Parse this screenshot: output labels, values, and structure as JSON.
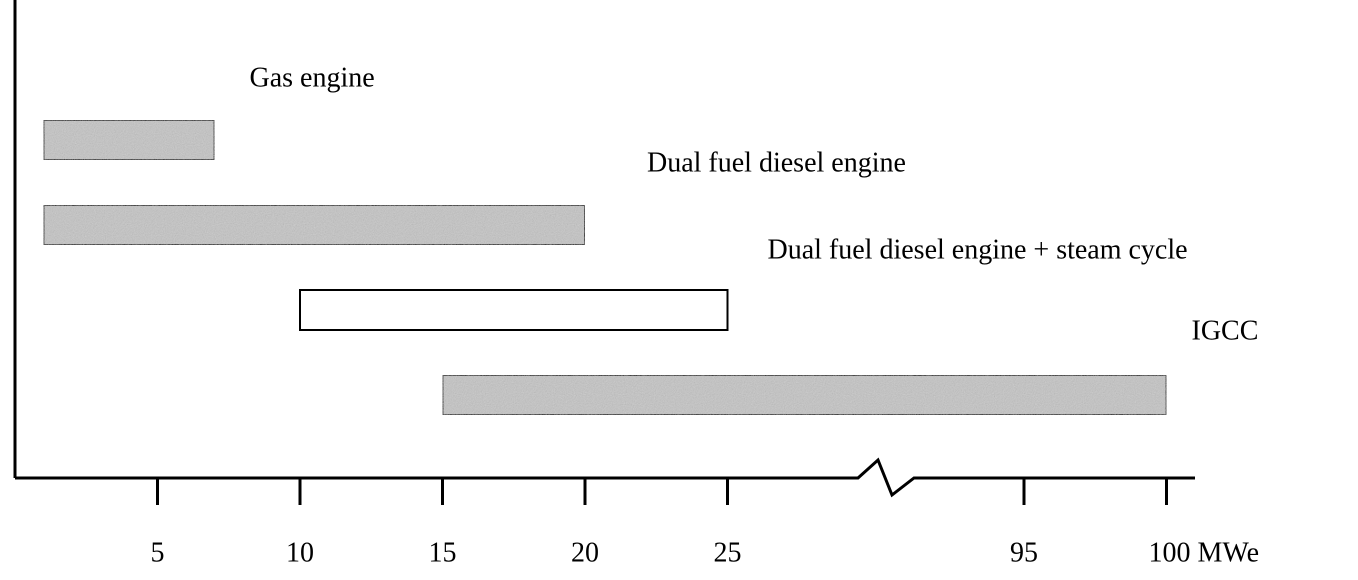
{
  "chart_data": {
    "type": "range_bar",
    "categories": [
      "Gas engine",
      "Dual fuel diesel engine",
      "Dual fuel diesel engine + steam cycle",
      "IGCC"
    ],
    "starts": [
      1,
      1,
      10,
      15
    ],
    "ends": [
      7,
      20,
      25,
      100
    ],
    "colors": [
      "#c4c4c4",
      "#c4c4c4",
      "#ffffff",
      "#c4c4c4"
    ],
    "xlim": [
      0,
      101
    ],
    "axis_break": [
      30,
      91
    ],
    "xticks": [
      5,
      10,
      15,
      20,
      25,
      95,
      {
        "value": 100,
        "label": "100 MWe"
      }
    ]
  }
}
